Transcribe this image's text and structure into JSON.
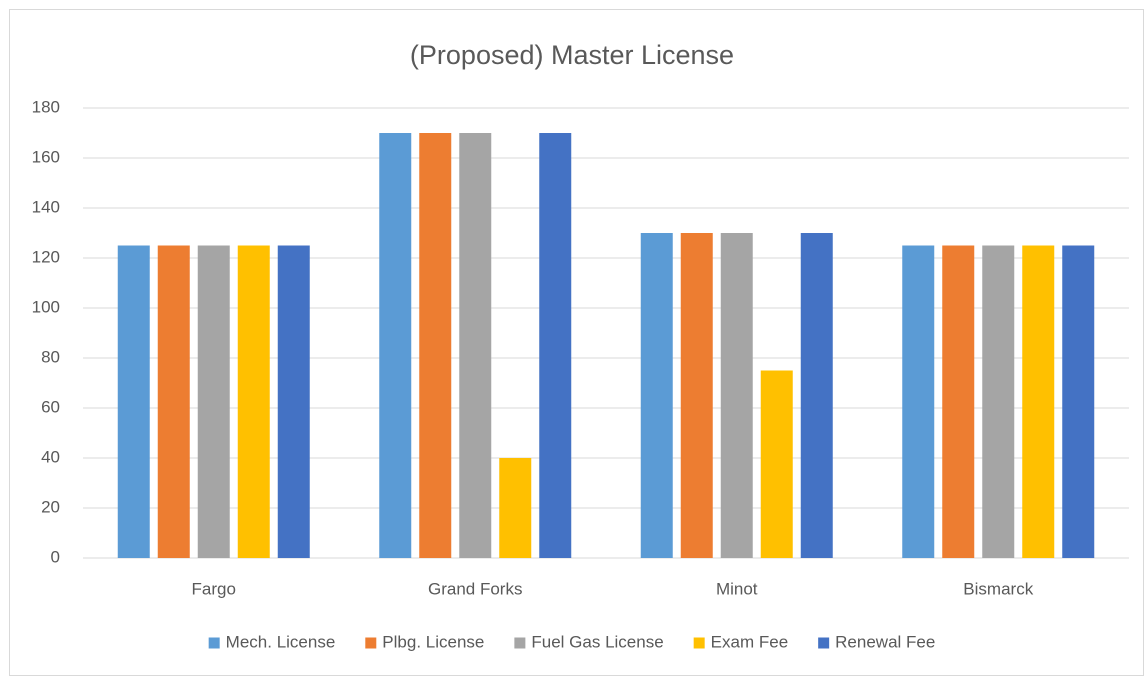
{
  "chart_data": {
    "type": "bar",
    "title": "(Proposed) Master License",
    "categories": [
      "Fargo",
      "Grand Forks",
      "Minot",
      "Bismarck"
    ],
    "series": [
      {
        "name": "Mech. License",
        "color": "#5b9bd5",
        "values": [
          125,
          170,
          130,
          125
        ]
      },
      {
        "name": "Plbg. License",
        "color": "#ed7d31",
        "values": [
          125,
          170,
          130,
          125
        ]
      },
      {
        "name": "Fuel Gas License",
        "color": "#a5a5a5",
        "values": [
          125,
          170,
          130,
          125
        ]
      },
      {
        "name": "Exam Fee",
        "color": "#ffc000",
        "values": [
          125,
          40,
          75,
          125
        ]
      },
      {
        "name": "Renewal Fee",
        "color": "#4472c4",
        "values": [
          125,
          170,
          130,
          125
        ]
      }
    ],
    "ylim": [
      0,
      180
    ],
    "yticks": [
      0,
      20,
      40,
      60,
      80,
      100,
      120,
      140,
      160,
      180
    ],
    "grid": true,
    "legend": "bottom"
  }
}
